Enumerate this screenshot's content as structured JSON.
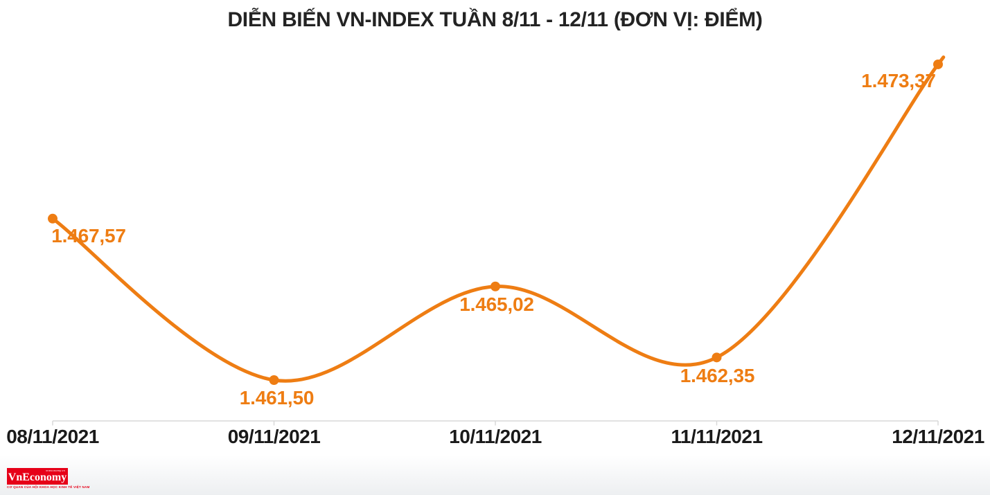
{
  "title": "DIỄN BIẾN VN-INDEX TUẦN 8/11 - 12/11 (ĐƠN VỊ: ĐIỂM)",
  "colors": {
    "accent": "#EE7D13",
    "title_text": "#232323",
    "axis_text": "#1A1A1A",
    "axis_line": "#D8D8D8",
    "logo_red": "#E60018",
    "background": "#FFFFFF"
  },
  "chart_data": {
    "type": "line",
    "title": "DIỄN BIẾN VN-INDEX TUẦN 8/11 - 12/11 (ĐƠN VỊ: ĐIỂM)",
    "categories": [
      "08/11/2021",
      "09/11/2021",
      "10/11/2021",
      "11/11/2021",
      "12/11/2021"
    ],
    "series": [
      {
        "name": "VN-Index",
        "values": [
          1467.57,
          1461.5,
          1465.02,
          1462.35,
          1473.37
        ]
      }
    ],
    "point_labels": [
      "1.467,57",
      "1.461,50",
      "1.465,02",
      "1.462,35",
      "1.473,37"
    ],
    "xlabel": "",
    "ylabel": "",
    "unit": "ĐIỂM",
    "ylim": [
      1460,
      1476
    ],
    "grid": false,
    "legend": false,
    "smooth": true,
    "markers": true,
    "line_color": "#EE7D13"
  },
  "logo": {
    "brand": "VnEconomy",
    "top_text": "vneconomy.vn",
    "subtitle": "CƠ QUAN CỦA HỘI KHOA HỌC KINH TẾ VIỆT NAM"
  }
}
